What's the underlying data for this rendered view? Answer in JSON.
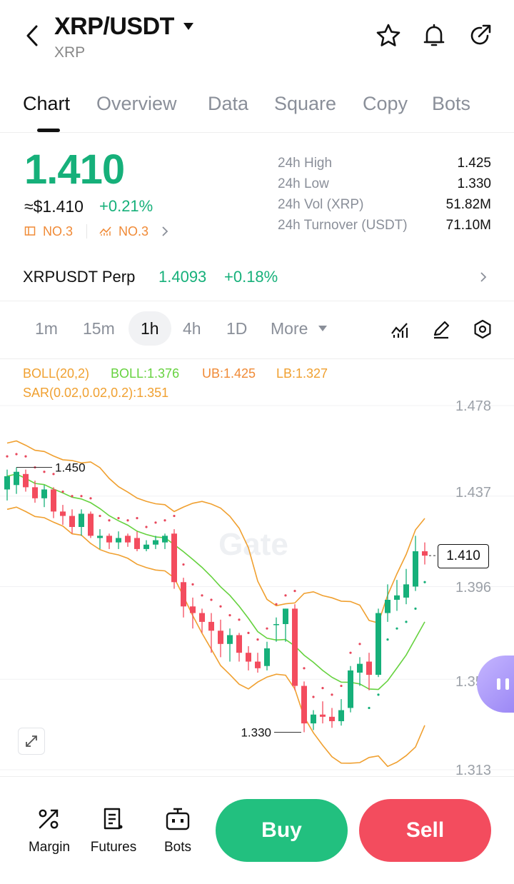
{
  "header": {
    "pair": "XRP/USDT",
    "subtitle": "XRP",
    "icons": [
      "back-icon",
      "star-icon",
      "bell-icon",
      "share-icon"
    ]
  },
  "tabs": [
    "Chart",
    "Overview",
    "Data",
    "Square",
    "Copy",
    "Bots"
  ],
  "active_tab": "Chart",
  "ticker": {
    "price": "1.410",
    "usd_price": "≈$1.410",
    "change": "+0.21%",
    "rank1": "NO.3",
    "rank2": "NO.3",
    "stats": [
      {
        "label": "24h  High",
        "value": "1.425"
      },
      {
        "label": "24h  Low",
        "value": "1.330"
      },
      {
        "label": "24h  Vol (XRP)",
        "value": "51.82M"
      },
      {
        "label": "24h  Turnover (USDT)",
        "value": "71.10M"
      }
    ]
  },
  "perp": {
    "name": "XRPUSDT Perp",
    "price": "1.4093",
    "change": "+0.18%"
  },
  "intervals": [
    "1m",
    "15m",
    "1h",
    "4h",
    "1D",
    "More"
  ],
  "active_interval": "1h",
  "indicators": {
    "boll": "BOLL(20,2)",
    "boll_mid": "BOLL:1.376",
    "ub": "UB:1.425",
    "lb": "LB:1.327",
    "sar": "SAR(0.02,0.02,0.2):1.351"
  },
  "colors": {
    "up": "#16b07a",
    "down": "#f34c5e",
    "boll_mid": "#66d23f",
    "boll_band": "#f0a030",
    "sar": "#e8475c"
  },
  "chart_data": {
    "type": "candlestick",
    "y_axis_ticks": [
      "1.478",
      "1.437",
      "1.396",
      "1.354",
      "1.313"
    ],
    "current_price_label": "1.410",
    "high_marker": "1.450",
    "low_marker": "1.330",
    "watermark": "Gate",
    "candles": [
      {
        "o": 1.44,
        "h": 1.449,
        "l": 1.435,
        "c": 1.446
      },
      {
        "o": 1.442,
        "h": 1.45,
        "l": 1.438,
        "c": 1.448
      },
      {
        "o": 1.447,
        "h": 1.449,
        "l": 1.439,
        "c": 1.441
      },
      {
        "o": 1.441,
        "h": 1.444,
        "l": 1.434,
        "c": 1.436
      },
      {
        "o": 1.436,
        "h": 1.442,
        "l": 1.432,
        "c": 1.44
      },
      {
        "o": 1.44,
        "h": 1.441,
        "l": 1.427,
        "c": 1.43
      },
      {
        "o": 1.43,
        "h": 1.433,
        "l": 1.424,
        "c": 1.428
      },
      {
        "o": 1.428,
        "h": 1.431,
        "l": 1.42,
        "c": 1.423
      },
      {
        "o": 1.423,
        "h": 1.431,
        "l": 1.419,
        "c": 1.429
      },
      {
        "o": 1.429,
        "h": 1.43,
        "l": 1.418,
        "c": 1.419
      },
      {
        "o": 1.418,
        "h": 1.422,
        "l": 1.413,
        "c": 1.419
      },
      {
        "o": 1.419,
        "h": 1.42,
        "l": 1.413,
        "c": 1.416
      },
      {
        "o": 1.416,
        "h": 1.421,
        "l": 1.413,
        "c": 1.418
      },
      {
        "o": 1.419,
        "h": 1.42,
        "l": 1.414,
        "c": 1.416
      },
      {
        "o": 1.418,
        "h": 1.421,
        "l": 1.412,
        "c": 1.413
      },
      {
        "o": 1.413,
        "h": 1.417,
        "l": 1.412,
        "c": 1.415
      },
      {
        "o": 1.415,
        "h": 1.419,
        "l": 1.413,
        "c": 1.417
      },
      {
        "o": 1.416,
        "h": 1.42,
        "l": 1.413,
        "c": 1.419
      },
      {
        "o": 1.42,
        "h": 1.422,
        "l": 1.395,
        "c": 1.398
      },
      {
        "o": 1.398,
        "h": 1.4,
        "l": 1.382,
        "c": 1.387
      },
      {
        "o": 1.387,
        "h": 1.391,
        "l": 1.377,
        "c": 1.384
      },
      {
        "o": 1.384,
        "h": 1.386,
        "l": 1.375,
        "c": 1.38
      },
      {
        "o": 1.38,
        "h": 1.384,
        "l": 1.366,
        "c": 1.376
      },
      {
        "o": 1.376,
        "h": 1.381,
        "l": 1.364,
        "c": 1.37
      },
      {
        "o": 1.37,
        "h": 1.377,
        "l": 1.362,
        "c": 1.374
      },
      {
        "o": 1.374,
        "h": 1.375,
        "l": 1.362,
        "c": 1.366
      },
      {
        "o": 1.366,
        "h": 1.369,
        "l": 1.358,
        "c": 1.362
      },
      {
        "o": 1.362,
        "h": 1.366,
        "l": 1.357,
        "c": 1.359
      },
      {
        "o": 1.36,
        "h": 1.371,
        "l": 1.358,
        "c": 1.368
      },
      {
        "o": 1.379,
        "h": 1.382,
        "l": 1.371,
        "c": 1.379
      },
      {
        "o": 1.379,
        "h": 1.386,
        "l": 1.371,
        "c": 1.386
      },
      {
        "o": 1.386,
        "h": 1.388,
        "l": 1.349,
        "c": 1.351
      },
      {
        "o": 1.351,
        "h": 1.353,
        "l": 1.33,
        "c": 1.334
      },
      {
        "o": 1.334,
        "h": 1.34,
        "l": 1.331,
        "c": 1.338
      },
      {
        "o": 1.338,
        "h": 1.344,
        "l": 1.334,
        "c": 1.337
      },
      {
        "o": 1.337,
        "h": 1.341,
        "l": 1.332,
        "c": 1.335
      },
      {
        "o": 1.335,
        "h": 1.345,
        "l": 1.333,
        "c": 1.34
      },
      {
        "o": 1.341,
        "h": 1.36,
        "l": 1.339,
        "c": 1.358
      },
      {
        "o": 1.357,
        "h": 1.364,
        "l": 1.351,
        "c": 1.361
      },
      {
        "o": 1.362,
        "h": 1.366,
        "l": 1.349,
        "c": 1.356
      },
      {
        "o": 1.356,
        "h": 1.386,
        "l": 1.355,
        "c": 1.384
      },
      {
        "o": 1.384,
        "h": 1.397,
        "l": 1.38,
        "c": 1.39
      },
      {
        "o": 1.39,
        "h": 1.399,
        "l": 1.385,
        "c": 1.392
      },
      {
        "o": 1.391,
        "h": 1.404,
        "l": 1.388,
        "c": 1.397
      },
      {
        "o": 1.396,
        "h": 1.419,
        "l": 1.394,
        "c": 1.412
      },
      {
        "o": 1.412,
        "h": 1.416,
        "l": 1.406,
        "c": 1.41
      }
    ]
  },
  "bottom_bar": {
    "margin": "Margin",
    "futures": "Futures",
    "bots": "Bots",
    "buy": "Buy",
    "sell": "Sell"
  }
}
